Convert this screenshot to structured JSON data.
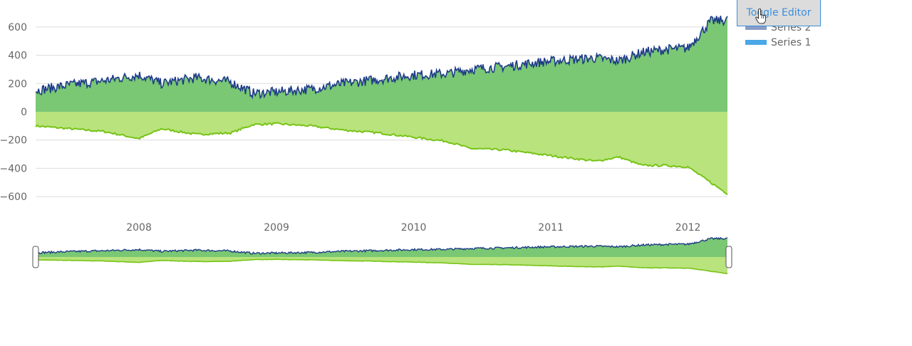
{
  "toolbar": {
    "toggle_editor_label": "Toggle Editor"
  },
  "icons": {
    "cursor": "hand-pointer-icon"
  },
  "colors": {
    "series1_fill": "#b9e37c",
    "series1_line": "#77c316",
    "series2_fill": "#7ac874",
    "series2_line": "#1f3c88",
    "grid": "#dddddd",
    "legend_series1": "#4aa8e8",
    "legend_series2": "#8a9cc7"
  },
  "chart_data": {
    "type": "area",
    "title": "",
    "xlabel": "",
    "ylabel": "",
    "ylim": [
      -650,
      720
    ],
    "xlim": [
      "2007-04-01",
      "2012-04-15"
    ],
    "y_ticks": [
      600,
      400,
      200,
      0,
      -200,
      -400,
      -600
    ],
    "y_tick_labels": [
      "600",
      "400",
      "200",
      "0",
      "−200",
      "−400",
      "−600"
    ],
    "x_tick_labels": [
      "2008",
      "2009",
      "2010",
      "2011",
      "2012"
    ],
    "grid": true,
    "legend": {
      "placement": "top-right",
      "entries": [
        "Series 2",
        "Series 1"
      ]
    },
    "range_selector": {
      "start": "2007-04-01",
      "end": "2012-04-15"
    },
    "series": [
      {
        "name": "Series 1",
        "x": [
          "2007-04-01",
          "2007-07-01",
          "2007-10-01",
          "2008-01-01",
          "2008-03-01",
          "2008-06-01",
          "2008-09-01",
          "2008-11-01",
          "2009-01-01",
          "2009-04-01",
          "2009-07-01",
          "2009-10-01",
          "2010-01-01",
          "2010-04-01",
          "2010-06-01",
          "2010-09-01",
          "2010-12-01",
          "2011-03-01",
          "2011-05-01",
          "2011-07-01",
          "2011-09-01",
          "2011-11-01",
          "2012-01-01",
          "2012-03-01",
          "2012-04-15"
        ],
        "values": [
          -100,
          -120,
          -140,
          -190,
          -120,
          -160,
          -150,
          -90,
          -85,
          -100,
          -130,
          -150,
          -180,
          -210,
          -260,
          -270,
          -300,
          -330,
          -350,
          -320,
          -380,
          -380,
          -390,
          -500,
          -580
        ]
      },
      {
        "name": "Series 2",
        "x": [
          "2007-04-01",
          "2007-07-01",
          "2007-10-01",
          "2008-01-01",
          "2008-03-01",
          "2008-06-01",
          "2008-09-01",
          "2008-11-01",
          "2009-01-01",
          "2009-04-01",
          "2009-07-01",
          "2009-10-01",
          "2010-01-01",
          "2010-04-01",
          "2010-06-01",
          "2010-09-01",
          "2010-12-01",
          "2011-03-01",
          "2011-05-01",
          "2011-07-01",
          "2011-09-01",
          "2011-11-01",
          "2012-01-01",
          "2012-03-01",
          "2012-04-15"
        ],
        "values": [
          150,
          190,
          220,
          260,
          200,
          240,
          210,
          130,
          140,
          160,
          200,
          230,
          260,
          270,
          300,
          320,
          350,
          370,
          380,
          360,
          420,
          440,
          450,
          640,
          650
        ]
      }
    ]
  }
}
